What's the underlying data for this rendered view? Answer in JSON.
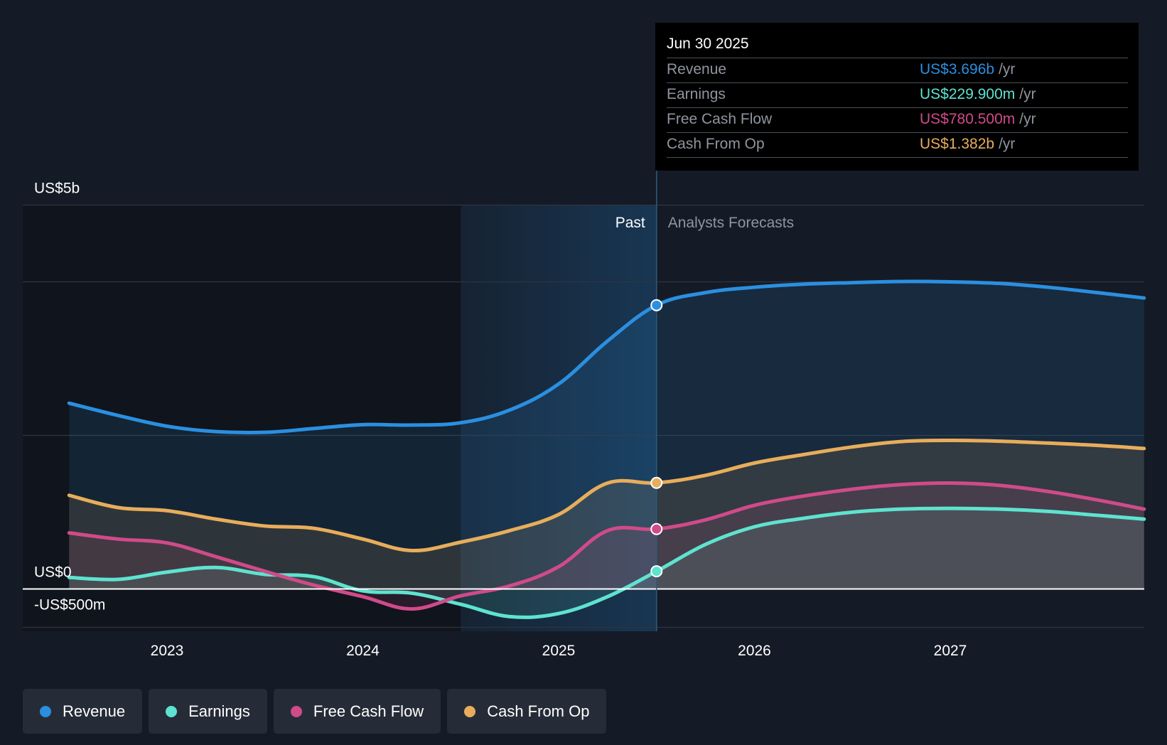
{
  "tooltip": {
    "date": "Jun 30 2025",
    "rows": [
      {
        "label": "Revenue",
        "value": "US$3.696b",
        "unit": "/yr",
        "color": "#2b8fe0"
      },
      {
        "label": "Earnings",
        "value": "US$229.900m",
        "unit": "/yr",
        "color": "#5ee3d0"
      },
      {
        "label": "Free Cash Flow",
        "value": "US$780.500m",
        "unit": "/yr",
        "color": "#cf4b8a"
      },
      {
        "label": "Cash From Op",
        "value": "US$1.382b",
        "unit": "/yr",
        "color": "#e8ad5b"
      }
    ]
  },
  "legend": [
    {
      "label": "Revenue",
      "color": "#2b8fe0"
    },
    {
      "label": "Earnings",
      "color": "#5ee3d0"
    },
    {
      "label": "Free Cash Flow",
      "color": "#cf4b8a"
    },
    {
      "label": "Cash From Op",
      "color": "#e8ad5b"
    }
  ],
  "chart_data": {
    "type": "line",
    "title": "",
    "xlabel": "",
    "ylabel": "",
    "y_tick_labels": [
      "US$5b",
      "US$0",
      "-US$500m"
    ],
    "y_ticks": [
      5000,
      0,
      -500
    ],
    "ylim": [
      -500,
      5000
    ],
    "xlim": [
      2022.5,
      2027.99
    ],
    "x_ticks": [
      2023,
      2024,
      2025,
      2026,
      2027
    ],
    "x_tick_labels": [
      "2023",
      "2024",
      "2025",
      "2026",
      "2027"
    ],
    "past_label": "Past",
    "forecast_label": "Analysts Forecasts",
    "past_end": 2025.5,
    "past_highlight_start": 2024.5,
    "marker_x": 2025.5,
    "series": [
      {
        "name": "Revenue",
        "color": "#2b8fe0",
        "x": [
          2022.5,
          2022.75,
          2023.0,
          2023.25,
          2023.5,
          2023.75,
          2024.0,
          2024.25,
          2024.5,
          2024.75,
          2025.0,
          2025.25,
          2025.5,
          2025.75,
          2026.0,
          2026.25,
          2026.5,
          2026.75,
          2027.0,
          2027.25,
          2027.5,
          2027.75,
          2027.99
        ],
        "values": [
          2420,
          2260,
          2120,
          2050,
          2040,
          2090,
          2140,
          2135,
          2165,
          2330,
          2670,
          3230,
          3696,
          3860,
          3930,
          3970,
          3990,
          4005,
          4000,
          3980,
          3930,
          3860,
          3790
        ]
      },
      {
        "name": "Earnings",
        "color": "#5ee3d0",
        "x": [
          2022.5,
          2022.75,
          2023.0,
          2023.25,
          2023.5,
          2023.75,
          2024.0,
          2024.25,
          2024.5,
          2024.75,
          2025.0,
          2025.25,
          2025.5,
          2025.75,
          2026.0,
          2026.25,
          2026.5,
          2026.75,
          2027.0,
          2027.25,
          2027.5,
          2027.75,
          2027.99
        ],
        "values": [
          150,
          125,
          220,
          280,
          190,
          160,
          -25,
          -55,
          -200,
          -360,
          -320,
          -100,
          229.9,
          580,
          810,
          920,
          1000,
          1040,
          1050,
          1040,
          1010,
          960,
          910
        ]
      },
      {
        "name": "Free Cash Flow",
        "color": "#cf4b8a",
        "x": [
          2022.5,
          2022.75,
          2023.0,
          2023.25,
          2023.5,
          2023.75,
          2024.0,
          2024.25,
          2024.5,
          2024.75,
          2025.0,
          2025.25,
          2025.5,
          2025.75,
          2026.0,
          2026.25,
          2026.5,
          2026.75,
          2027.0,
          2027.25,
          2027.5,
          2027.75,
          2027.99
        ],
        "values": [
          730,
          650,
          600,
          420,
          230,
          50,
          -100,
          -260,
          -90,
          40,
          290,
          760,
          780.5,
          900,
          1090,
          1210,
          1300,
          1360,
          1380,
          1350,
          1270,
          1160,
          1040
        ]
      },
      {
        "name": "Cash From Op",
        "color": "#e8ad5b",
        "x": [
          2022.5,
          2022.75,
          2023.0,
          2023.25,
          2023.5,
          2023.75,
          2024.0,
          2024.25,
          2024.5,
          2024.75,
          2025.0,
          2025.25,
          2025.5,
          2025.75,
          2026.0,
          2026.25,
          2026.5,
          2026.75,
          2027.0,
          2027.25,
          2027.5,
          2027.75,
          2027.99
        ],
        "values": [
          1220,
          1060,
          1020,
          910,
          820,
          790,
          650,
          500,
          610,
          760,
          970,
          1380,
          1382,
          1480,
          1640,
          1750,
          1850,
          1920,
          1935,
          1925,
          1900,
          1870,
          1830
        ]
      }
    ]
  }
}
